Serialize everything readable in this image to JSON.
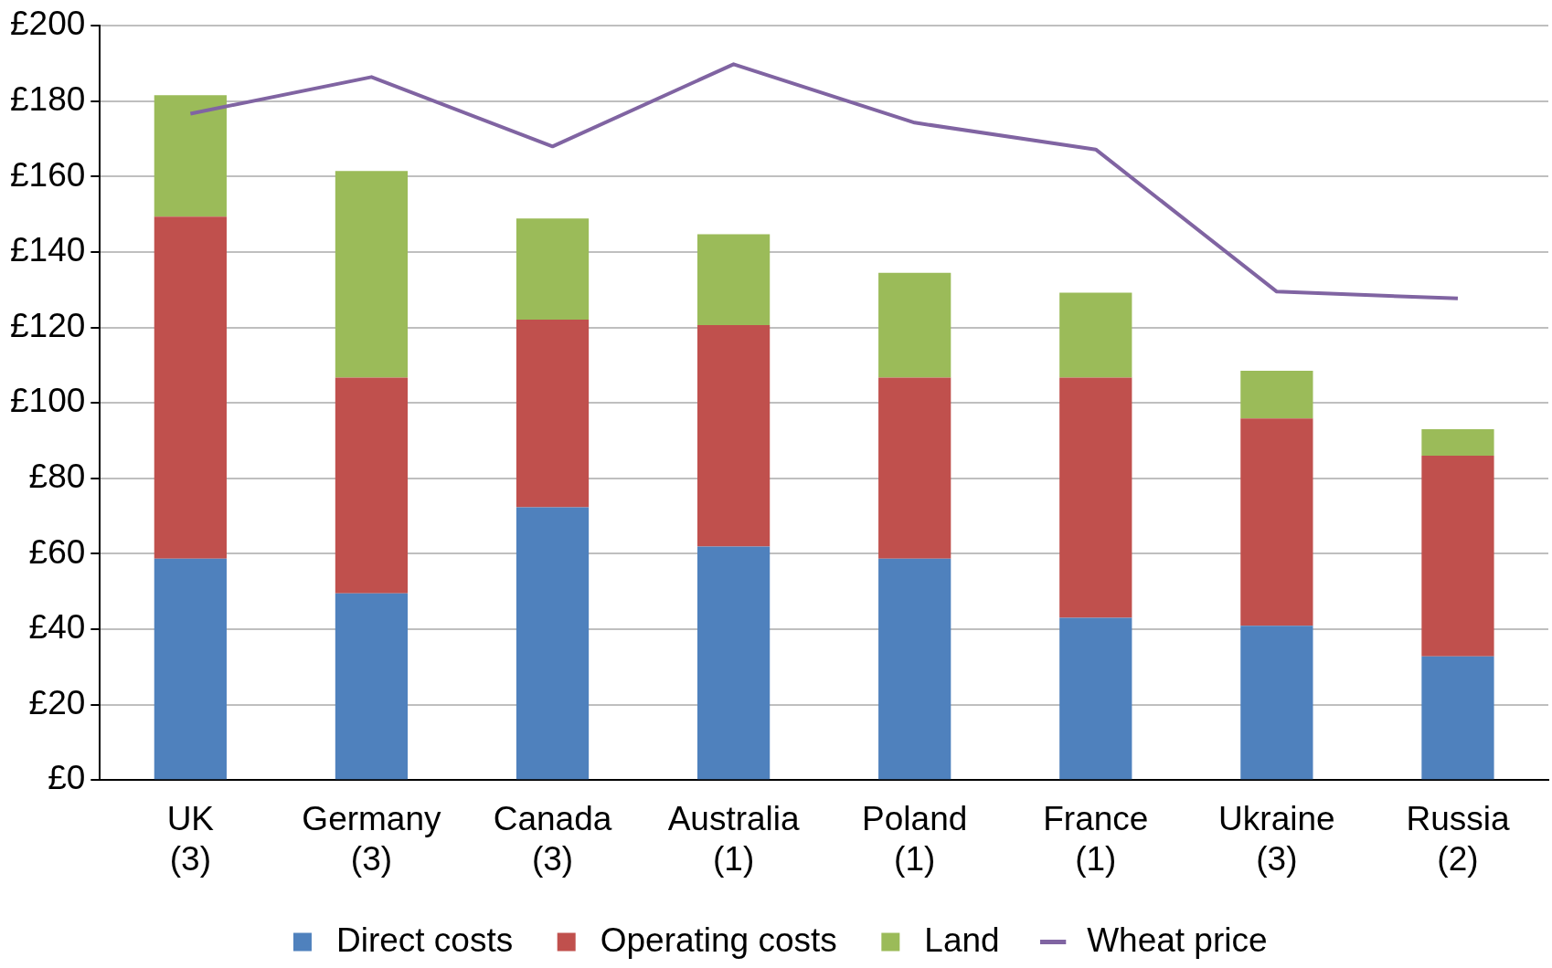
{
  "chart_data": {
    "type": "bar",
    "stacked": true,
    "categories": [
      "UK\n(3)",
      "Germany\n(3)",
      "Canada\n(3)",
      "Australia\n(1)",
      "Poland\n(1)",
      "France\n(1)",
      "Ukraine\n(3)",
      "Russia\n(2)"
    ],
    "series": [
      {
        "name": "Direct costs",
        "color": "#4f81bd",
        "values": [
          58.7,
          49.5,
          72.3,
          61.9,
          58.7,
          43,
          40.9,
          32.8
        ]
      },
      {
        "name": "Operating costs",
        "color": "#c0504d",
        "values": [
          90.7,
          57.2,
          49.8,
          58.7,
          48,
          63.7,
          55,
          53.2
        ]
      },
      {
        "name": "Land",
        "color": "#9bbb59",
        "values": [
          32.2,
          54.8,
          26.8,
          24.1,
          27.8,
          22.5,
          12.6,
          7
        ]
      },
      {
        "name": "Wheat price",
        "type": "line",
        "color": "#8064a2",
        "marker": "none",
        "values": [
          176.7,
          186.4,
          168,
          189.8,
          174.3,
          167.2,
          129.5,
          127.7
        ]
      }
    ],
    "ylim": [
      0,
      200
    ],
    "yticks": [
      {
        "value": 0,
        "label": "£0"
      },
      {
        "value": 20,
        "label": "£20"
      },
      {
        "value": 40,
        "label": "£40"
      },
      {
        "value": 60,
        "label": "£60"
      },
      {
        "value": 80,
        "label": "£80"
      },
      {
        "value": 100,
        "label": "£100"
      },
      {
        "value": 120,
        "label": "£120"
      },
      {
        "value": 140,
        "label": "£140"
      },
      {
        "value": 160,
        "label": "£160"
      },
      {
        "value": 180,
        "label": "£180"
      },
      {
        "value": 200,
        "label": "£200"
      }
    ],
    "grid": "y",
    "legend": "bottom"
  }
}
